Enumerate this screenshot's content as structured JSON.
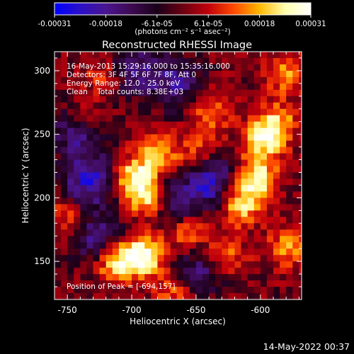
{
  "figure": {
    "title": "Reconstructed RHESSI Image",
    "info_lines": [
      "16-May-2013 15:29:16.000 to 15:35:16.000",
      "Detectors: 3F 4F 5F 6F 7F 8F, Att 0",
      "Energy Range: 12.0 - 25.0 keV",
      "Clean    Total counts: 8.38E+03"
    ],
    "peak_label": "Position of Peak = [-694,157]",
    "footer_date": "14-May-2022 00:37"
  },
  "colorbar": {
    "ticks": [
      "-0.00031",
      "-0.00018",
      "-6.1e-05",
      "6.1e-05",
      "0.00018",
      "0.00031"
    ],
    "label": "(photons cm⁻² s⁻¹ asec⁻²)",
    "range": [
      -0.00031,
      0.00031
    ],
    "palette": [
      "#0000ff",
      "#2b10c8",
      "#4a1590",
      "#3d0a50",
      "#1a001a",
      "#6a0012",
      "#c2000c",
      "#ff4a00",
      "#ffb800",
      "#ffffb0",
      "#ffffff"
    ]
  },
  "chart_data": {
    "type": "heatmap",
    "title": "Reconstructed RHESSI Image",
    "xlabel": "Heliocentric X (arcsec)",
    "ylabel": "Heliocentric Y (arcsec)",
    "xlim": [
      -760,
      -568
    ],
    "ylim": [
      120,
      315
    ],
    "xticks": [
      -750,
      -700,
      -650,
      -600
    ],
    "yticks": [
      150,
      200,
      250,
      300
    ],
    "value_range": [
      -0.00031,
      0.00031
    ],
    "peak_position": [
      -694,
      157
    ],
    "source_regions": [
      {
        "x": -694,
        "y": 157,
        "peak": 0.00031
      },
      {
        "x": -715,
        "y": 152,
        "peak": 0.00025
      },
      {
        "x": -700,
        "y": 218,
        "peak": 0.00026
      },
      {
        "x": -690,
        "y": 202,
        "peak": 0.00022
      },
      {
        "x": -682,
        "y": 238,
        "peak": 0.00018
      },
      {
        "x": -660,
        "y": 175,
        "peak": 0.00015
      },
      {
        "x": -630,
        "y": 158,
        "peak": 0.00016
      },
      {
        "x": -618,
        "y": 198,
        "peak": 0.00024
      },
      {
        "x": -605,
        "y": 218,
        "peak": 0.00026
      },
      {
        "x": -600,
        "y": 248,
        "peak": 0.00024
      },
      {
        "x": -590,
        "y": 262,
        "peak": 0.00018
      },
      {
        "x": -582,
        "y": 300,
        "peak": 0.00016
      },
      {
        "x": -580,
        "y": 165,
        "peak": 0.00017
      },
      {
        "x": -640,
        "y": 270,
        "peak": 0.00016
      },
      {
        "x": -652,
        "y": 238,
        "peak": 0.00012
      },
      {
        "x": -740,
        "y": 265,
        "peak": 0.00012
      },
      {
        "x": -752,
        "y": 188,
        "peak": 0.00013
      },
      {
        "x": -725,
        "y": 300,
        "peak": 0.0001
      },
      {
        "x": -670,
        "y": 130,
        "peak": 0.00013
      }
    ],
    "negative_regions": [
      {
        "x": -735,
        "y": 215,
        "peak": -0.00024
      },
      {
        "x": -745,
        "y": 255,
        "peak": -0.0002
      },
      {
        "x": -730,
        "y": 170,
        "peak": -0.00018
      },
      {
        "x": -668,
        "y": 292,
        "peak": -0.00018
      },
      {
        "x": -640,
        "y": 215,
        "peak": -0.00022
      },
      {
        "x": -668,
        "y": 200,
        "peak": -0.00016
      },
      {
        "x": -650,
        "y": 145,
        "peak": -0.00016
      },
      {
        "x": -700,
        "y": 305,
        "peak": -0.00016
      }
    ]
  }
}
